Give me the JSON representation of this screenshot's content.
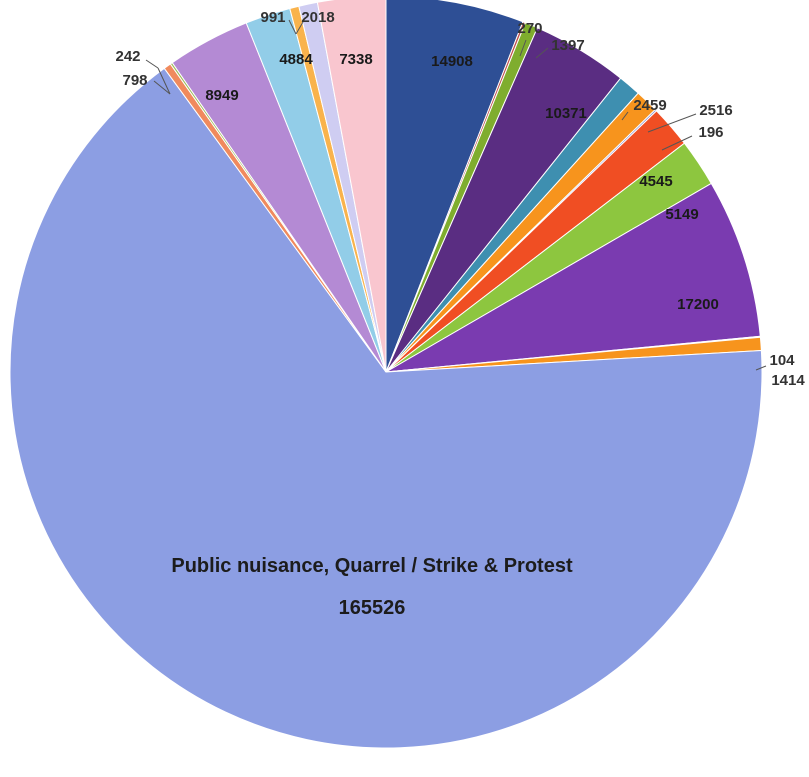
{
  "chart_data": {
    "type": "pie",
    "start": "top",
    "direction": "clockwise",
    "legend": "none",
    "title": "",
    "slices": [
      {
        "value": 14908,
        "label": "14908",
        "color": "#2e4f95"
      },
      {
        "value": 270,
        "label": "270",
        "color": "#c0504d"
      },
      {
        "value": 1397,
        "label": "1397",
        "color": "#7fad2e"
      },
      {
        "value": 10371,
        "label": "10371",
        "color": "#5a2d82"
      },
      {
        "value": 2459,
        "label": "2459",
        "color": "#3e8fb0"
      },
      {
        "value": 2516,
        "label": "2516",
        "color": "#f7941d"
      },
      {
        "value": 196,
        "label": "196",
        "color": "#8a8fcf"
      },
      {
        "value": 4545,
        "label": "4545",
        "color": "#f04e23"
      },
      {
        "value": 5149,
        "label": "5149",
        "color": "#8dc63f"
      },
      {
        "value": 17200,
        "label": "17200",
        "color": "#7a3bb0"
      },
      {
        "value": 104,
        "label": "104",
        "color": "#4a90c6"
      },
      {
        "value": 1414,
        "label": "1414",
        "color": "#f7941d"
      },
      {
        "value": 165526,
        "label": "165526",
        "color": "#8c9ee3",
        "category": "Public nuisance, Quarrel / Strike & Protest"
      },
      {
        "value": 798,
        "label": "798",
        "color": "#f08a5d"
      },
      {
        "value": 242,
        "label": "242",
        "color": "#9bbb59"
      },
      {
        "value": 8949,
        "label": "8949",
        "color": "#b48ad4"
      },
      {
        "value": 4884,
        "label": "4884",
        "color": "#92cde8"
      },
      {
        "value": 991,
        "label": "991",
        "color": "#f9b34c"
      },
      {
        "value": 2018,
        "label": "2018",
        "color": "#cfcdf2"
      },
      {
        "value": 7338,
        "label": "7338",
        "color": "#f9c6cf"
      }
    ]
  }
}
